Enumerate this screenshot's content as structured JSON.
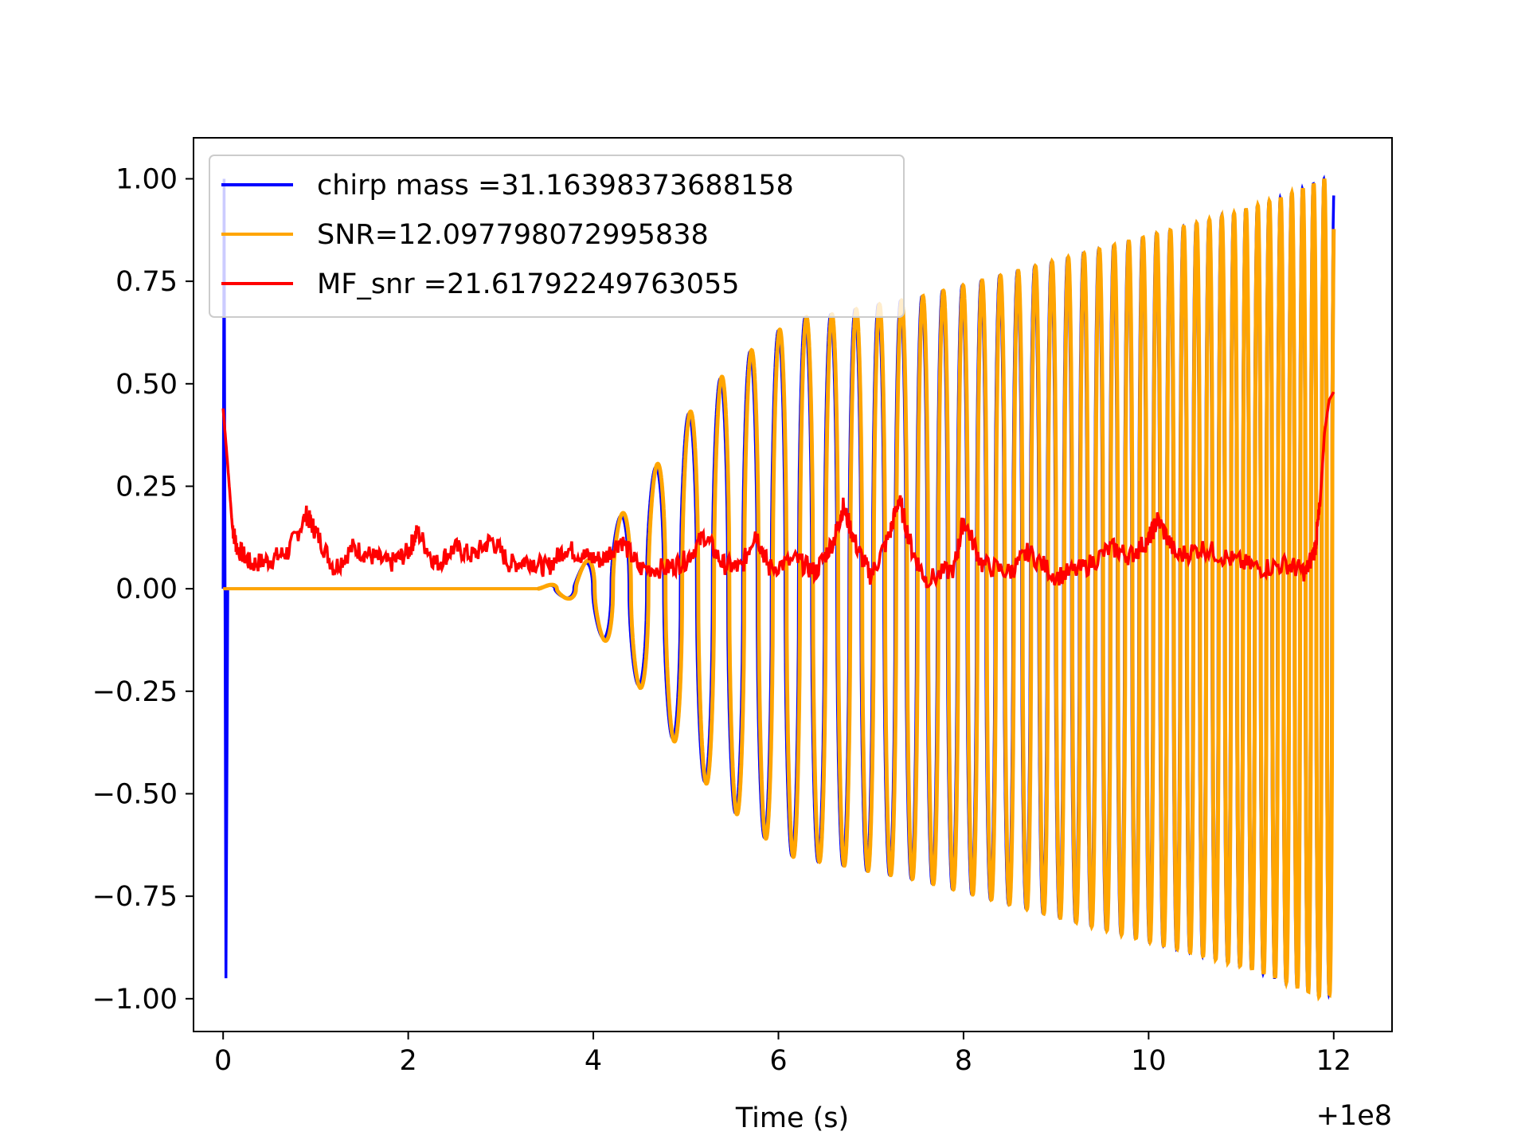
{
  "chart_data": {
    "type": "line",
    "title": "",
    "xlabel": "Time (s)",
    "ylabel": "",
    "x_offset_label": "+1e8",
    "xlim": [
      -0.32,
      12.63
    ],
    "ylim": [
      -1.08,
      1.1
    ],
    "xticks": [
      0,
      2,
      4,
      6,
      8,
      10,
      12
    ],
    "xtick_labels": [
      "0",
      "2",
      "4",
      "6",
      "8",
      "10",
      "12"
    ],
    "yticks": [
      1.0,
      0.75,
      0.5,
      0.25,
      0.0,
      -0.25,
      -0.5,
      -0.75,
      -1.0
    ],
    "ytick_labels": [
      "1.00",
      "0.75",
      "0.50",
      "0.25",
      "0.00",
      "−0.25",
      "−0.50",
      "−0.75",
      "−1.00"
    ],
    "grid": false,
    "legend": {
      "position": "upper-left",
      "entries": [
        {
          "label": "chirp mass =31.16398373688158",
          "color": "#0000ff"
        },
        {
          "label": "SNR=12.097798072995838",
          "color": "#ffa500"
        },
        {
          "label": "MF_snr =21.61792249763055",
          "color": "#ff0000"
        }
      ]
    },
    "series": [
      {
        "name": "chirp mass =31.16398373688158",
        "color": "#0000ff",
        "description_points": [
          [
            0.0,
            0.0
          ],
          [
            0.01,
            1.0
          ],
          [
            0.03,
            -0.95
          ],
          [
            0.05,
            0.0
          ],
          [
            3.5,
            0.0
          ],
          [
            4.0,
            0.08
          ],
          [
            5.0,
            0.4
          ],
          [
            6.0,
            0.66
          ],
          [
            7.0,
            0.7
          ],
          [
            8.0,
            0.74
          ],
          [
            9.0,
            0.8
          ],
          [
            10.0,
            0.86
          ],
          [
            11.0,
            0.92
          ],
          [
            11.9,
            1.0
          ],
          [
            12.0,
            0.0
          ]
        ],
        "envelope": [
          [
            3.4,
            0.0
          ],
          [
            3.8,
            0.03
          ],
          [
            4.2,
            0.15
          ],
          [
            4.6,
            0.27
          ],
          [
            5.0,
            0.42
          ],
          [
            5.4,
            0.52
          ],
          [
            5.8,
            0.6
          ],
          [
            6.2,
            0.66
          ],
          [
            6.6,
            0.67
          ],
          [
            7.0,
            0.69
          ],
          [
            7.5,
            0.71
          ],
          [
            8.0,
            0.74
          ],
          [
            8.5,
            0.77
          ],
          [
            9.0,
            0.8
          ],
          [
            9.5,
            0.83
          ],
          [
            10.0,
            0.86
          ],
          [
            10.5,
            0.89
          ],
          [
            11.0,
            0.92
          ],
          [
            11.5,
            0.96
          ],
          [
            11.9,
            1.0
          ],
          [
            12.0,
            0.98
          ]
        ]
      },
      {
        "name": "SNR=12.097798072995838",
        "color": "#ffa500",
        "envelope": [
          [
            3.4,
            0.0
          ],
          [
            3.8,
            0.03
          ],
          [
            4.2,
            0.15
          ],
          [
            4.6,
            0.27
          ],
          [
            5.0,
            0.42
          ],
          [
            5.4,
            0.52
          ],
          [
            5.8,
            0.6
          ],
          [
            6.2,
            0.66
          ],
          [
            6.6,
            0.67
          ],
          [
            7.0,
            0.69
          ],
          [
            7.5,
            0.71
          ],
          [
            8.0,
            0.74
          ],
          [
            8.5,
            0.77
          ],
          [
            9.0,
            0.8
          ],
          [
            9.5,
            0.83
          ],
          [
            10.0,
            0.86
          ],
          [
            10.5,
            0.89
          ],
          [
            11.0,
            0.92
          ],
          [
            11.5,
            0.96
          ],
          [
            11.9,
            1.0
          ],
          [
            12.0,
            0.98
          ]
        ]
      },
      {
        "name": "MF_snr =21.61792249763055",
        "color": "#ff0000",
        "points": [
          [
            0.0,
            0.44
          ],
          [
            0.05,
            0.3
          ],
          [
            0.1,
            0.15
          ],
          [
            0.15,
            0.1
          ],
          [
            0.3,
            0.06
          ],
          [
            0.5,
            0.07
          ],
          [
            0.7,
            0.09
          ],
          [
            0.9,
            0.18
          ],
          [
            1.0,
            0.14
          ],
          [
            1.2,
            0.05
          ],
          [
            1.4,
            0.1
          ],
          [
            1.6,
            0.08
          ],
          [
            1.8,
            0.06
          ],
          [
            2.0,
            0.09
          ],
          [
            2.1,
            0.14
          ],
          [
            2.3,
            0.06
          ],
          [
            2.5,
            0.1
          ],
          [
            2.7,
            0.08
          ],
          [
            2.9,
            0.12
          ],
          [
            3.1,
            0.06
          ],
          [
            3.3,
            0.07
          ],
          [
            3.5,
            0.05
          ],
          [
            3.7,
            0.1
          ],
          [
            3.9,
            0.08
          ],
          [
            4.1,
            0.07
          ],
          [
            4.3,
            0.12
          ],
          [
            4.5,
            0.05
          ],
          [
            4.8,
            0.05
          ],
          [
            5.0,
            0.07
          ],
          [
            5.2,
            0.13
          ],
          [
            5.4,
            0.06
          ],
          [
            5.6,
            0.05
          ],
          [
            5.75,
            0.14
          ],
          [
            5.9,
            0.05
          ],
          [
            6.2,
            0.07
          ],
          [
            6.4,
            0.04
          ],
          [
            6.6,
            0.12
          ],
          [
            6.7,
            0.2
          ],
          [
            6.85,
            0.1
          ],
          [
            7.0,
            0.03
          ],
          [
            7.2,
            0.13
          ],
          [
            7.3,
            0.22
          ],
          [
            7.45,
            0.09
          ],
          [
            7.6,
            0.02
          ],
          [
            7.9,
            0.05
          ],
          [
            8.0,
            0.17
          ],
          [
            8.2,
            0.06
          ],
          [
            8.5,
            0.04
          ],
          [
            8.7,
            0.09
          ],
          [
            9.0,
            0.03
          ],
          [
            9.3,
            0.05
          ],
          [
            9.6,
            0.1
          ],
          [
            9.8,
            0.08
          ],
          [
            10.0,
            0.12
          ],
          [
            10.1,
            0.17
          ],
          [
            10.3,
            0.08
          ],
          [
            10.6,
            0.1
          ],
          [
            10.9,
            0.07
          ],
          [
            11.2,
            0.05
          ],
          [
            11.5,
            0.06
          ],
          [
            11.7,
            0.04
          ],
          [
            11.8,
            0.1
          ],
          [
            11.85,
            0.2
          ],
          [
            11.9,
            0.38
          ],
          [
            11.95,
            0.46
          ],
          [
            12.0,
            0.48
          ]
        ]
      }
    ]
  }
}
